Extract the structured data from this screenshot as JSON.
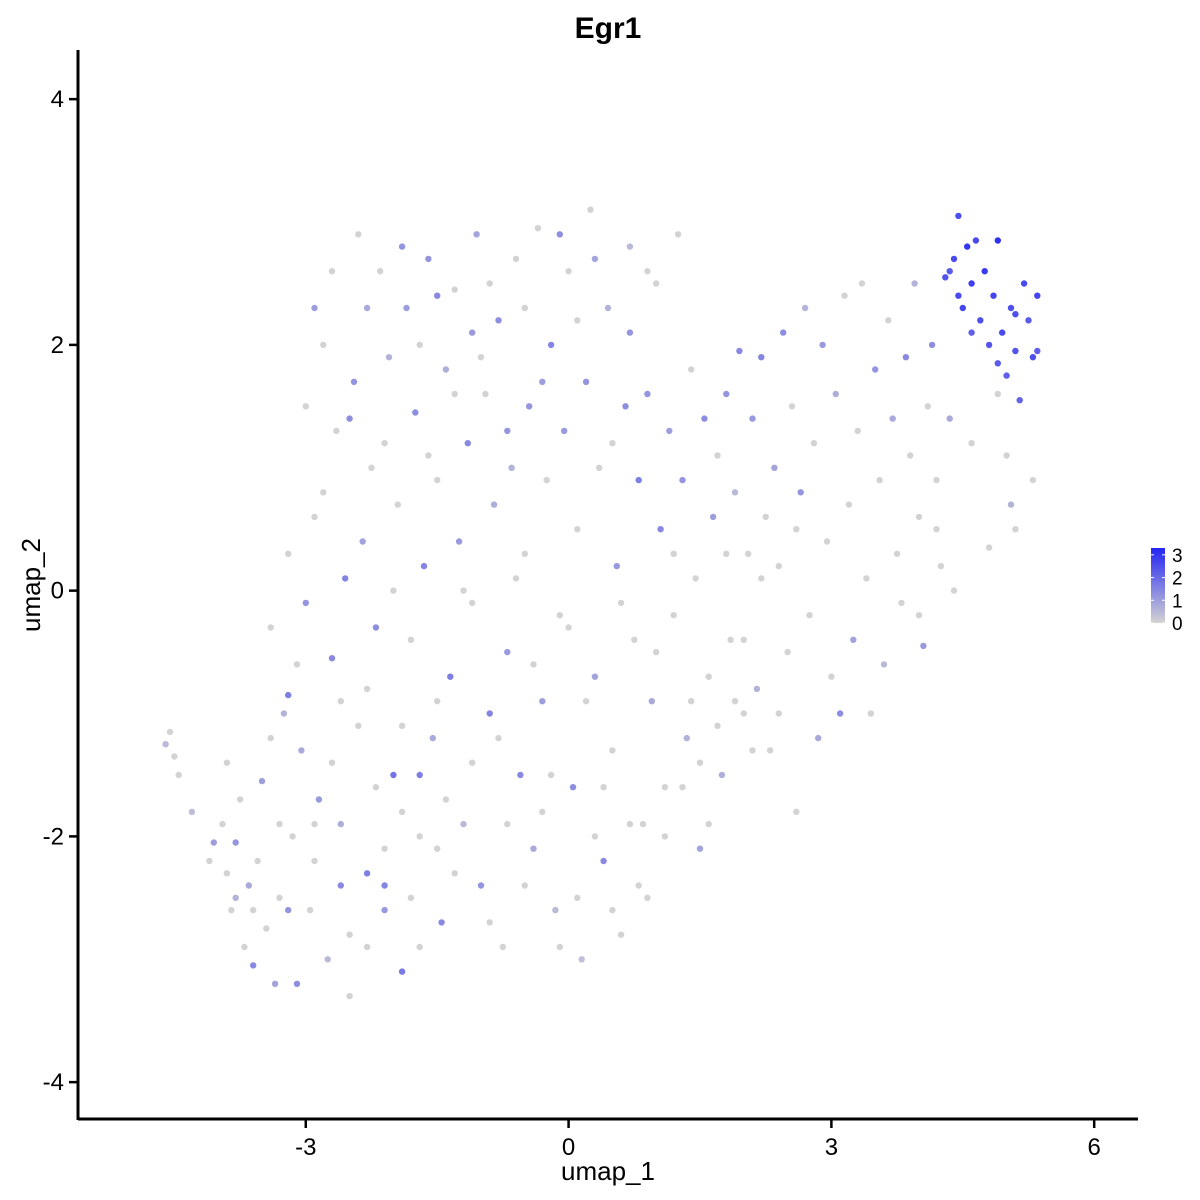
{
  "chart_data": {
    "type": "scatter",
    "title": "Egr1",
    "xlabel": "umap_1",
    "ylabel": "umap_2",
    "xlim": [
      -5.6,
      6.5
    ],
    "ylim": [
      -4.3,
      4.4
    ],
    "x_ticks": [
      -3,
      0,
      3,
      6
    ],
    "y_ticks": [
      -4,
      -2,
      0,
      2,
      4
    ],
    "grid": false,
    "legend": {
      "placement": "right",
      "type": "colorbar",
      "min": 0,
      "max": 3.3,
      "ticks": [
        0,
        1,
        2,
        3
      ],
      "color_low": "#d3d3d3",
      "color_high": "#2525f5"
    },
    "points": [
      [
        -4.6,
        -1.25,
        0.5
      ],
      [
        -4.55,
        -1.15,
        0
      ],
      [
        -4.5,
        -1.35,
        0
      ],
      [
        -4.45,
        -1.5,
        0
      ],
      [
        -4.3,
        -1.8,
        0.4
      ],
      [
        -4.1,
        -2.2,
        0
      ],
      [
        -4.05,
        -2.05,
        1.0
      ],
      [
        -3.95,
        -1.9,
        0
      ],
      [
        -3.9,
        -2.3,
        0
      ],
      [
        -3.85,
        -2.6,
        0
      ],
      [
        -3.8,
        -2.05,
        1.2
      ],
      [
        -3.75,
        -1.7,
        0
      ],
      [
        -3.7,
        -2.9,
        0
      ],
      [
        -3.65,
        -2.4,
        0.8
      ],
      [
        -3.6,
        -3.05,
        1.4
      ],
      [
        -3.55,
        -2.2,
        0
      ],
      [
        -3.5,
        -1.55,
        1.0
      ],
      [
        -3.45,
        -2.75,
        0
      ],
      [
        -3.4,
        -0.3,
        0
      ],
      [
        -3.35,
        -3.2,
        0.9
      ],
      [
        -3.3,
        -2.5,
        0
      ],
      [
        -3.25,
        -1.0,
        0.6
      ],
      [
        -3.2,
        -0.85,
        1.6
      ],
      [
        -3.15,
        -2.0,
        0
      ],
      [
        -3.1,
        -3.2,
        1.3
      ],
      [
        -3.05,
        -1.3,
        0.8
      ],
      [
        -3.0,
        -0.1,
        1.2
      ],
      [
        -2.95,
        -2.6,
        0
      ],
      [
        -2.9,
        0.6,
        0
      ],
      [
        -2.85,
        -1.7,
        1.1
      ],
      [
        -2.8,
        0.8,
        0
      ],
      [
        -2.75,
        -3.0,
        0.5
      ],
      [
        -2.7,
        -0.55,
        1.4
      ],
      [
        -2.65,
        1.3,
        0
      ],
      [
        -2.6,
        -1.9,
        0.7
      ],
      [
        -2.55,
        0.1,
        1.5
      ],
      [
        -2.5,
        -2.8,
        0
      ],
      [
        -2.45,
        1.7,
        1.2
      ],
      [
        -2.4,
        -1.1,
        0
      ],
      [
        -2.35,
        0.4,
        0.9
      ],
      [
        -2.3,
        -2.3,
        1.6
      ],
      [
        -2.25,
        1.0,
        0
      ],
      [
        -2.2,
        -0.3,
        1.3
      ],
      [
        -2.15,
        2.6,
        0
      ],
      [
        -2.1,
        -2.6,
        1.1
      ],
      [
        -2.05,
        1.9,
        0.6
      ],
      [
        -2.0,
        -1.5,
        1.8
      ],
      [
        -1.95,
        0.7,
        0
      ],
      [
        -1.9,
        -3.1,
        1.7
      ],
      [
        -1.85,
        2.3,
        1.0
      ],
      [
        -1.8,
        -0.4,
        0
      ],
      [
        -1.75,
        1.45,
        1.3
      ],
      [
        -1.7,
        -2.0,
        0
      ],
      [
        -1.65,
        0.2,
        1.5
      ],
      [
        -1.6,
        2.7,
        1.2
      ],
      [
        -1.55,
        -1.2,
        0.8
      ],
      [
        -1.5,
        0.9,
        0
      ],
      [
        -1.45,
        -2.7,
        1.4
      ],
      [
        -1.4,
        1.8,
        0.7
      ],
      [
        -1.35,
        -0.7,
        1.6
      ],
      [
        -1.3,
        2.45,
        0
      ],
      [
        -1.25,
        0.4,
        1.1
      ],
      [
        -1.2,
        -1.9,
        0.5
      ],
      [
        -1.15,
        1.2,
        1.4
      ],
      [
        -1.1,
        -0.1,
        0
      ],
      [
        -1.05,
        2.9,
        0.9
      ],
      [
        -1.0,
        -2.4,
        1.2
      ],
      [
        -0.95,
        1.6,
        0
      ],
      [
        -0.9,
        -1.0,
        1.5
      ],
      [
        -0.85,
        0.7,
        0.7
      ],
      [
        -0.8,
        2.2,
        1.3
      ],
      [
        -0.75,
        -2.9,
        0
      ],
      [
        -0.7,
        -0.5,
        1.1
      ],
      [
        -0.65,
        1.0,
        0.6
      ],
      [
        -0.6,
        2.7,
        0
      ],
      [
        -0.55,
        -1.5,
        1.4
      ],
      [
        -0.5,
        0.3,
        0
      ],
      [
        -0.45,
        1.5,
        1.2
      ],
      [
        -0.4,
        -2.1,
        0.8
      ],
      [
        -0.35,
        2.95,
        0
      ],
      [
        -0.3,
        -0.9,
        1.0
      ],
      [
        -0.25,
        0.9,
        0
      ],
      [
        -0.2,
        2.0,
        1.5
      ],
      [
        -0.15,
        -2.6,
        0.5
      ],
      [
        -0.1,
        -0.2,
        0
      ],
      [
        -0.05,
        1.3,
        1.1
      ],
      [
        0.0,
        2.6,
        0
      ],
      [
        0.05,
        -1.6,
        1.3
      ],
      [
        0.1,
        0.5,
        0
      ],
      [
        0.15,
        -3.0,
        0.4
      ],
      [
        0.2,
        1.7,
        1.2
      ],
      [
        0.25,
        3.1,
        0
      ],
      [
        0.3,
        -0.7,
        0.9
      ],
      [
        0.35,
        1.0,
        0
      ],
      [
        0.4,
        -2.2,
        1.4
      ],
      [
        0.45,
        2.3,
        0.6
      ],
      [
        0.5,
        -1.3,
        0
      ],
      [
        0.55,
        0.2,
        1.1
      ],
      [
        0.6,
        -2.8,
        0
      ],
      [
        0.65,
        1.5,
        1.3
      ],
      [
        0.7,
        2.8,
        0.5
      ],
      [
        0.75,
        -0.4,
        0
      ],
      [
        0.8,
        0.9,
        1.6
      ],
      [
        0.85,
        -1.9,
        0
      ],
      [
        0.9,
        1.6,
        1.2
      ],
      [
        0.95,
        -0.9,
        0.8
      ],
      [
        1.0,
        2.5,
        0
      ],
      [
        1.05,
        0.5,
        1.4
      ],
      [
        1.1,
        -1.6,
        0
      ],
      [
        1.15,
        1.3,
        1.0
      ],
      [
        1.2,
        -0.2,
        0
      ],
      [
        1.25,
        2.9,
        0
      ],
      [
        1.3,
        0.9,
        1.2
      ],
      [
        1.35,
        -1.2,
        0.6
      ],
      [
        1.4,
        1.8,
        0
      ],
      [
        1.45,
        0.1,
        0
      ],
      [
        1.5,
        -2.1,
        0.9
      ],
      [
        1.55,
        1.4,
        1.3
      ],
      [
        1.6,
        -0.7,
        0
      ],
      [
        1.65,
        0.6,
        1.0
      ],
      [
        1.7,
        1.1,
        0
      ],
      [
        1.75,
        -1.5,
        0.7
      ],
      [
        1.8,
        1.6,
        1.2
      ],
      [
        1.85,
        -0.4,
        0
      ],
      [
        1.9,
        0.8,
        0.5
      ],
      [
        1.95,
        1.95,
        1.4
      ],
      [
        2.0,
        -1.0,
        0
      ],
      [
        2.05,
        0.3,
        0
      ],
      [
        2.1,
        1.4,
        1.1
      ],
      [
        2.15,
        -0.8,
        0.6
      ],
      [
        2.2,
        1.9,
        1.5
      ],
      [
        2.25,
        0.6,
        0
      ],
      [
        2.3,
        -1.3,
        0
      ],
      [
        2.35,
        1.0,
        0.9
      ],
      [
        2.4,
        0.2,
        0
      ],
      [
        2.45,
        2.1,
        1.3
      ],
      [
        2.5,
        -0.5,
        0
      ],
      [
        2.55,
        1.5,
        0
      ],
      [
        2.6,
        -1.8,
        0
      ],
      [
        2.65,
        0.8,
        1.2
      ],
      [
        2.7,
        2.3,
        0.6
      ],
      [
        2.75,
        -0.2,
        0
      ],
      [
        2.8,
        1.2,
        0
      ],
      [
        2.85,
        -1.2,
        0.8
      ],
      [
        2.9,
        2.0,
        1.1
      ],
      [
        2.95,
        0.4,
        0
      ],
      [
        3.0,
        -0.7,
        0
      ],
      [
        3.05,
        1.6,
        0.7
      ],
      [
        3.1,
        -1.0,
        1.3
      ],
      [
        3.15,
        2.4,
        0
      ],
      [
        3.2,
        0.7,
        0
      ],
      [
        3.25,
        -0.4,
        0.9
      ],
      [
        3.3,
        1.3,
        0
      ],
      [
        3.35,
        2.5,
        0
      ],
      [
        3.4,
        0.1,
        0
      ],
      [
        3.45,
        -1.0,
        0
      ],
      [
        3.5,
        1.8,
        1.2
      ],
      [
        3.55,
        0.9,
        0
      ],
      [
        3.6,
        -0.6,
        0.5
      ],
      [
        3.65,
        2.2,
        0
      ],
      [
        3.7,
        1.4,
        0.8
      ],
      [
        3.75,
        0.3,
        0
      ],
      [
        3.8,
        -0.1,
        0
      ],
      [
        3.85,
        1.9,
        1.4
      ],
      [
        3.9,
        1.1,
        0
      ],
      [
        3.95,
        2.5,
        0.6
      ],
      [
        4.0,
        0.6,
        0
      ],
      [
        4.05,
        -0.45,
        1.1
      ],
      [
        4.1,
        1.5,
        0
      ],
      [
        4.15,
        2.0,
        1.3
      ],
      [
        4.2,
        0.9,
        0
      ],
      [
        4.25,
        0.2,
        0
      ],
      [
        4.3,
        2.55,
        2.4
      ],
      [
        4.35,
        1.4,
        0.8
      ],
      [
        4.4,
        2.7,
        2.6
      ],
      [
        4.45,
        3.05,
        2.5
      ],
      [
        4.5,
        2.3,
        2.7
      ],
      [
        4.55,
        2.8,
        3.0
      ],
      [
        4.6,
        2.5,
        2.8
      ],
      [
        4.65,
        2.85,
        2.6
      ],
      [
        4.7,
        2.2,
        2.5
      ],
      [
        4.75,
        2.6,
        2.9
      ],
      [
        4.8,
        2.0,
        2.4
      ],
      [
        4.85,
        2.4,
        2.7
      ],
      [
        4.9,
        1.85,
        2.3
      ],
      [
        4.95,
        2.1,
        2.6
      ],
      [
        5.0,
        1.75,
        2.2
      ],
      [
        5.05,
        2.3,
        2.5
      ],
      [
        5.1,
        1.95,
        2.4
      ],
      [
        5.15,
        1.55,
        2.1
      ],
      [
        5.2,
        2.5,
        2.6
      ],
      [
        5.25,
        2.2,
        2.3
      ],
      [
        5.3,
        1.9,
        2.5
      ],
      [
        5.35,
        2.4,
        2.7
      ],
      [
        5.35,
        1.95,
        2.2
      ],
      [
        4.9,
        2.85,
        3.1
      ],
      [
        4.45,
        2.4,
        2.6
      ],
      [
        4.6,
        2.1,
        2.2
      ],
      [
        4.35,
        2.6,
        2.3
      ],
      [
        5.1,
        2.25,
        2.5
      ],
      [
        4.2,
        0.5,
        0
      ],
      [
        4.6,
        1.2,
        0
      ],
      [
        4.9,
        1.6,
        0
      ],
      [
        5.0,
        1.1,
        0
      ],
      [
        5.05,
        0.7,
        0.6
      ],
      [
        5.3,
        0.9,
        0
      ],
      [
        5.1,
        0.5,
        0
      ],
      [
        4.8,
        0.35,
        0
      ],
      [
        4.4,
        0.0,
        0
      ],
      [
        4.0,
        -0.2,
        0
      ],
      [
        -3.2,
        0.3,
        0
      ],
      [
        -3.0,
        1.5,
        0
      ],
      [
        -2.8,
        2.0,
        0
      ],
      [
        -2.6,
        -0.9,
        0
      ],
      [
        -2.4,
        2.9,
        0
      ],
      [
        -2.2,
        -1.6,
        0
      ],
      [
        -2.0,
        0.0,
        0
      ],
      [
        -1.8,
        -2.5,
        0
      ],
      [
        -1.6,
        1.1,
        0
      ],
      [
        -1.4,
        -1.7,
        0
      ],
      [
        -1.2,
        0.0,
        0
      ],
      [
        -1.0,
        1.9,
        0
      ],
      [
        -0.8,
        -1.2,
        0
      ],
      [
        -0.6,
        0.1,
        0
      ],
      [
        -0.4,
        -0.6,
        0
      ],
      [
        -0.2,
        -1.5,
        0
      ],
      [
        0.0,
        -0.3,
        0
      ],
      [
        0.2,
        -0.9,
        0
      ],
      [
        0.4,
        -1.6,
        0
      ],
      [
        0.6,
        -0.1,
        0
      ],
      [
        0.8,
        -2.4,
        0
      ],
      [
        1.0,
        -0.5,
        0
      ],
      [
        1.2,
        0.3,
        0
      ],
      [
        1.4,
        -0.9,
        0
      ],
      [
        1.6,
        -1.9,
        0
      ],
      [
        1.8,
        0.3,
        0
      ],
      [
        2.0,
        -0.4,
        0
      ],
      [
        2.2,
        0.1,
        0
      ],
      [
        2.4,
        -1.0,
        0
      ],
      [
        2.6,
        0.5,
        0
      ],
      [
        -3.9,
        -1.4,
        0
      ],
      [
        -3.6,
        -2.6,
        0
      ],
      [
        -3.3,
        -1.9,
        0
      ],
      [
        -3.1,
        -0.6,
        0
      ],
      [
        -2.9,
        -2.2,
        0
      ],
      [
        -2.7,
        -1.4,
        0
      ],
      [
        -2.5,
        -3.3,
        0
      ],
      [
        -2.3,
        -0.8,
        0
      ],
      [
        -2.1,
        -2.1,
        0
      ],
      [
        -1.9,
        -1.1,
        0
      ],
      [
        -1.7,
        -2.9,
        0
      ],
      [
        -1.5,
        -0.9,
        0
      ],
      [
        -1.3,
        -2.3,
        0
      ],
      [
        -1.1,
        -1.4,
        0
      ],
      [
        -0.9,
        -2.7,
        0
      ],
      [
        -0.7,
        -1.9,
        0
      ],
      [
        -0.5,
        -2.4,
        0
      ],
      [
        -0.3,
        -1.8,
        0
      ],
      [
        -0.1,
        -2.9,
        0
      ],
      [
        0.1,
        -2.5,
        0
      ],
      [
        0.3,
        -2.0,
        0
      ],
      [
        0.5,
        -2.6,
        0
      ],
      [
        0.7,
        -1.9,
        0
      ],
      [
        0.9,
        -2.5,
        0
      ],
      [
        1.1,
        -2.0,
        0
      ],
      [
        1.3,
        -1.6,
        0
      ],
      [
        1.5,
        -1.4,
        0
      ],
      [
        1.7,
        -1.1,
        0
      ],
      [
        1.9,
        -0.9,
        0
      ],
      [
        2.1,
        -1.3,
        0
      ],
      [
        -2.9,
        2.3,
        1.0
      ],
      [
        -2.7,
        2.6,
        0
      ],
      [
        -2.5,
        1.4,
        1.3
      ],
      [
        -2.3,
        2.3,
        0.8
      ],
      [
        -2.1,
        1.2,
        0
      ],
      [
        -1.9,
        2.8,
        1.2
      ],
      [
        -1.7,
        2.0,
        0
      ],
      [
        -1.5,
        2.4,
        1.4
      ],
      [
        -1.3,
        1.6,
        0
      ],
      [
        -1.1,
        2.1,
        1.1
      ],
      [
        -0.9,
        2.5,
        0
      ],
      [
        -0.7,
        1.3,
        1.2
      ],
      [
        -0.5,
        2.3,
        0
      ],
      [
        -0.3,
        1.7,
        1.0
      ],
      [
        -0.1,
        2.9,
        1.3
      ],
      [
        0.1,
        2.2,
        0
      ],
      [
        0.3,
        2.7,
        0.9
      ],
      [
        0.5,
        1.2,
        0
      ],
      [
        0.7,
        2.1,
        1.2
      ],
      [
        0.9,
        2.6,
        0
      ],
      [
        -3.8,
        -2.5,
        0.6
      ],
      [
        -3.4,
        -1.2,
        0
      ],
      [
        -3.2,
        -2.6,
        1.2
      ],
      [
        -2.9,
        -1.9,
        0
      ],
      [
        -2.6,
        -2.4,
        1.4
      ],
      [
        -2.3,
        -2.9,
        0
      ],
      [
        -2.1,
        -2.4,
        1.5
      ],
      [
        -1.9,
        -1.8,
        0
      ],
      [
        -1.7,
        -1.5,
        1.6
      ],
      [
        -1.5,
        -2.1,
        0
      ]
    ]
  }
}
